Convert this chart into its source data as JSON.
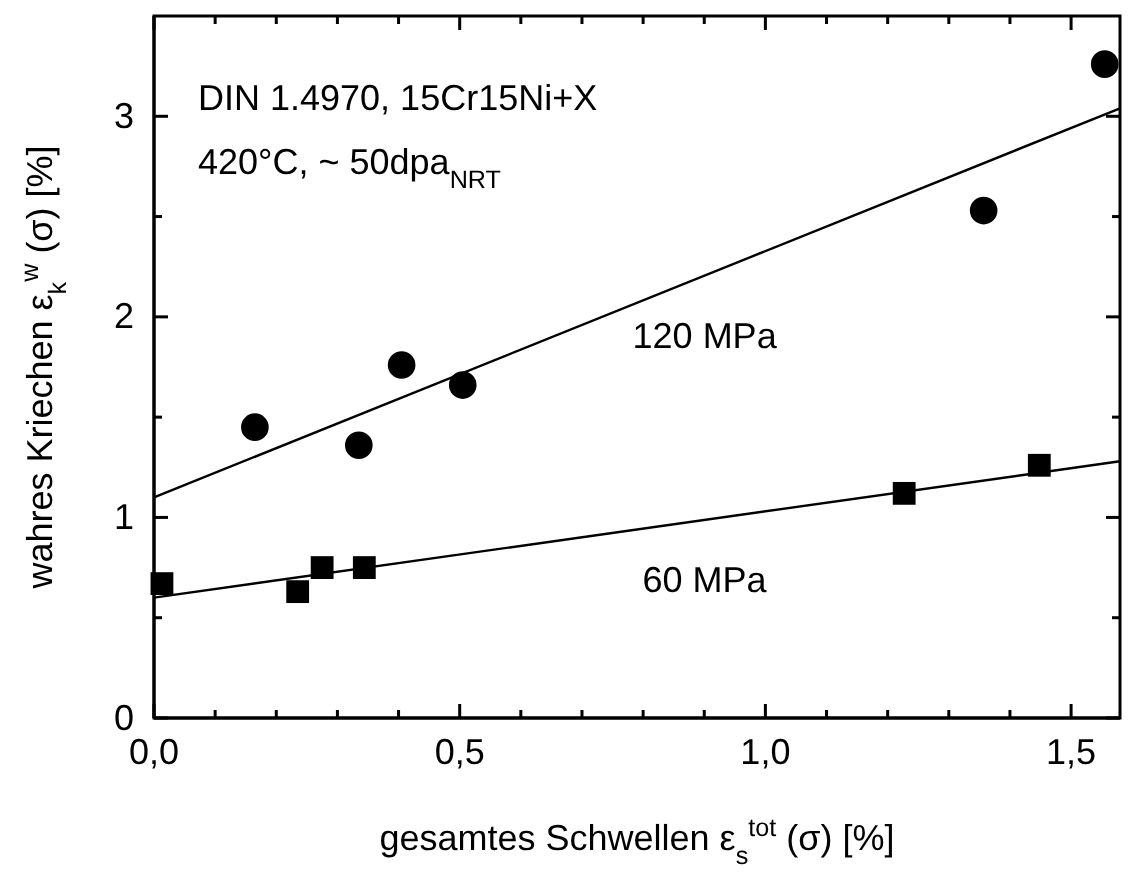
{
  "chart_data": {
    "type": "scatter",
    "xlabel": "gesamtes Schwellen ε$_{s}$$^{tot}$ (σ) [%]",
    "ylabel": "wahres Kriechen ε$_{k}$$^{w}$ (σ) [%]",
    "annotations": [
      "DIN 1.4970, 15Cr15Ni+X",
      "420°C, ~ 50dpa$_{NRT}$"
    ],
    "xlim": [
      0,
      1.58
    ],
    "ylim": [
      0,
      3.5
    ],
    "xticks": [
      {
        "value": 0,
        "label": "0,0"
      },
      {
        "value": 0.1,
        "label": null
      },
      {
        "value": 0.2,
        "label": null
      },
      {
        "value": 0.3,
        "label": null
      },
      {
        "value": 0.4,
        "label": null
      },
      {
        "value": 0.5,
        "label": "0,5"
      },
      {
        "value": 0.6,
        "label": null
      },
      {
        "value": 0.7,
        "label": null
      },
      {
        "value": 0.8,
        "label": null
      },
      {
        "value": 0.9,
        "label": null
      },
      {
        "value": 1.0,
        "label": "1,0"
      },
      {
        "value": 1.1,
        "label": null
      },
      {
        "value": 1.2,
        "label": null
      },
      {
        "value": 1.3,
        "label": null
      },
      {
        "value": 1.4,
        "label": null
      },
      {
        "value": 1.5,
        "label": "1,5"
      }
    ],
    "yticks": [
      0,
      {
        "value": 0.5,
        "label": null
      },
      1,
      {
        "value": 1.5,
        "label": null
      },
      2,
      {
        "value": 2.5,
        "label": null
      },
      3
    ],
    "grid": false,
    "series": [
      {
        "marker": "circle",
        "color": "#000000",
        "x": [
          0.165,
          0.335,
          0.405,
          0.505,
          1.357,
          1.555
        ],
        "values": [
          1.45,
          1.36,
          1.76,
          1.66,
          2.53,
          3.26
        ]
      },
      {
        "marker": "square",
        "color": "#000000",
        "x": [
          0.013,
          0.235,
          0.275,
          0.344,
          1.227,
          1.448
        ],
        "values": [
          0.67,
          0.63,
          0.75,
          0.75,
          1.12,
          1.26
        ]
      },
      {
        "type": "line",
        "name": "120 MPa",
        "marker": "none",
        "line_style": "solid",
        "color": "#000000",
        "x": [
          0,
          1.58
        ],
        "values": [
          1.1,
          3.04
        ]
      },
      {
        "type": "line",
        "name": "60 MPa",
        "marker": "none",
        "line_style": "solid",
        "color": "#000000",
        "x": [
          0,
          1.58
        ],
        "values": [
          0.6,
          1.28
        ]
      }
    ]
  }
}
